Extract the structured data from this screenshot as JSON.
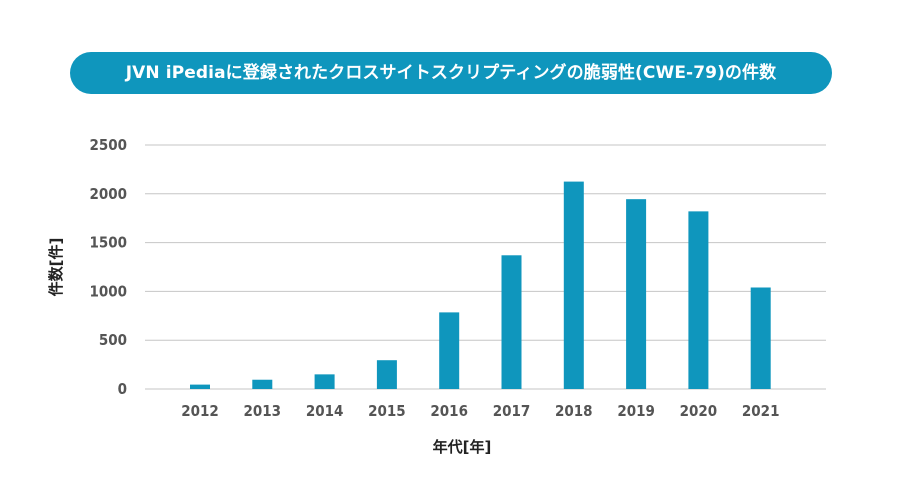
{
  "chart_data": {
    "type": "bar",
    "title": "JVN iPediaに登録されたクロスサイトスクリプティングの脆弱性(CWE-79)の件数",
    "xlabel": "年代[年]",
    "ylabel": "件数[件]",
    "categories": [
      "2012",
      "2013",
      "2014",
      "2015",
      "2016",
      "2017",
      "2018",
      "2019",
      "2020",
      "2021"
    ],
    "values": [
      45,
      95,
      150,
      295,
      785,
      1370,
      2125,
      1945,
      1820,
      1040
    ],
    "ylim": [
      0,
      2500
    ],
    "yticks": [
      0,
      500,
      1000,
      1500,
      2000,
      2500
    ],
    "grid": true,
    "legend": "none",
    "colors": {
      "bar": "#0f96bd",
      "title_background": "#0f96bd",
      "grid": "#c6c6c6"
    }
  }
}
